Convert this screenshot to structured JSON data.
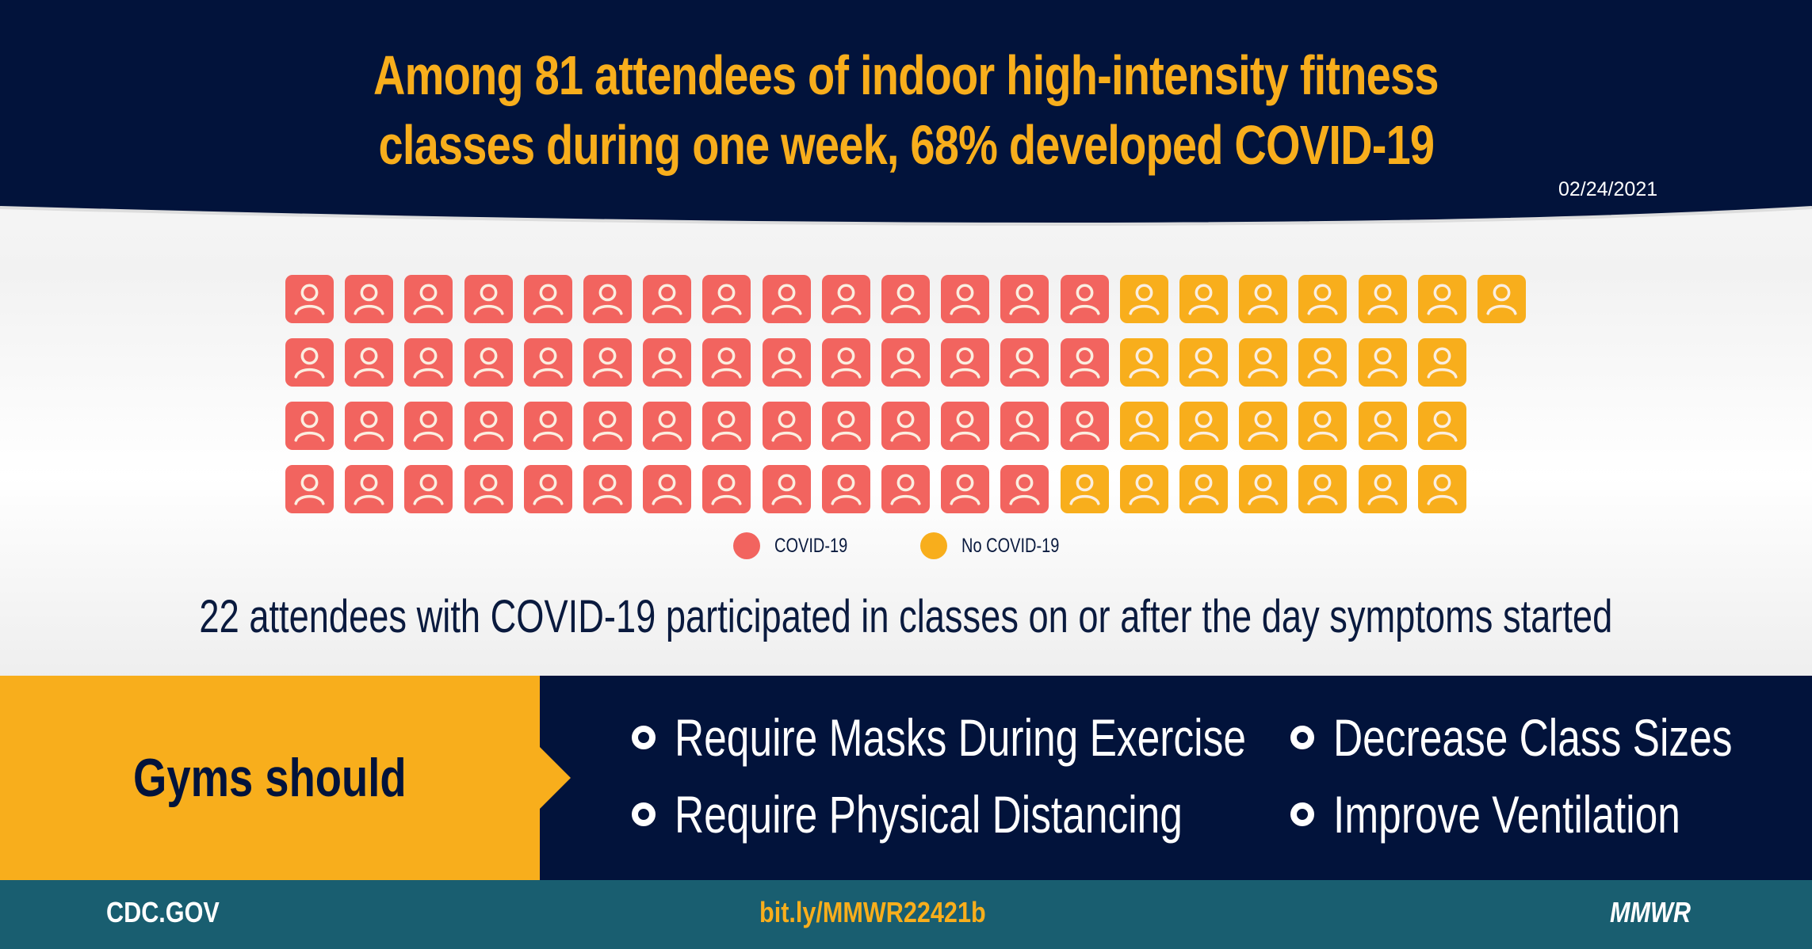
{
  "header": {
    "title_line1": "Among 81 attendees of indoor high-intensity fitness",
    "title_line2": "classes during one week, 68% developed COVID-19",
    "date": "02/24/2021"
  },
  "grid": {
    "total": 81,
    "percent_covid": 68,
    "rows": [
      {
        "covid": 14,
        "no_covid": 7
      },
      {
        "covid": 14,
        "no_covid": 6
      },
      {
        "covid": 14,
        "no_covid": 6
      },
      {
        "covid": 13,
        "no_covid": 7
      }
    ],
    "icon": "person-icon"
  },
  "legend": {
    "covid": "COVID-19",
    "no_covid": "No COVID-19"
  },
  "subtitle": "22 attendees with COVID-19 participated in classes on or after the day symptoms started",
  "recommendations": {
    "heading": "Gyms should",
    "items": [
      "Require Masks During Exercise",
      "Require Physical Distancing",
      "Decrease Class Sizes",
      "Improve Ventilation"
    ]
  },
  "footer": {
    "site": "CDC.GOV",
    "link": "bit.ly/MMWR22421b",
    "brand": "MMWR"
  },
  "colors": {
    "covid": "#f2645f",
    "no_covid": "#f8ae1c",
    "navy": "#02133b",
    "teal": "#195e70"
  }
}
